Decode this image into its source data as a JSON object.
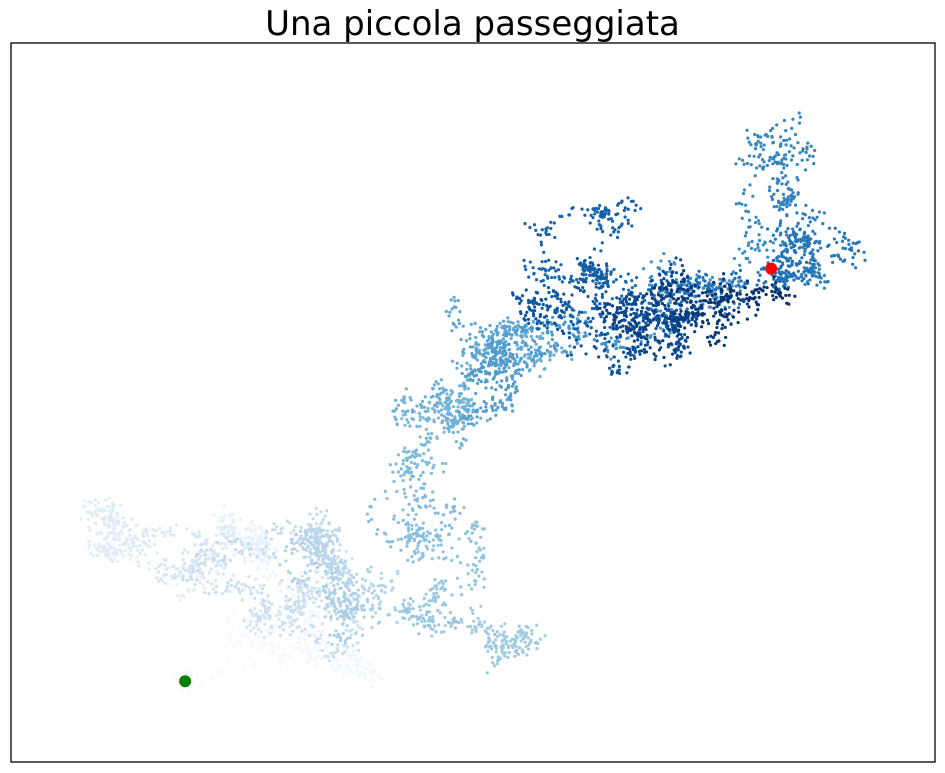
{
  "chart_data": {
    "type": "scatter",
    "title": "Una piccola passeggiata",
    "xlabel": "",
    "ylabel": "",
    "axes_visible": false,
    "grid": false,
    "legend": "none",
    "colormap": "Blues",
    "point_count": 5000,
    "random_seed": 7,
    "step_size": 1,
    "colors": {
      "start_point": "#008000",
      "end_point": "#ff0000",
      "frame": "#000000",
      "colormap_stops": [
        "#f7fbff",
        "#deebf7",
        "#c6dbef",
        "#9ecae1",
        "#6baed6",
        "#4292c6",
        "#2171b5",
        "#08519c",
        "#08306b"
      ]
    },
    "start_point": {
      "label": "start",
      "color": "#008000"
    },
    "end_point": {
      "label": "end",
      "color": "#ff0000"
    }
  }
}
